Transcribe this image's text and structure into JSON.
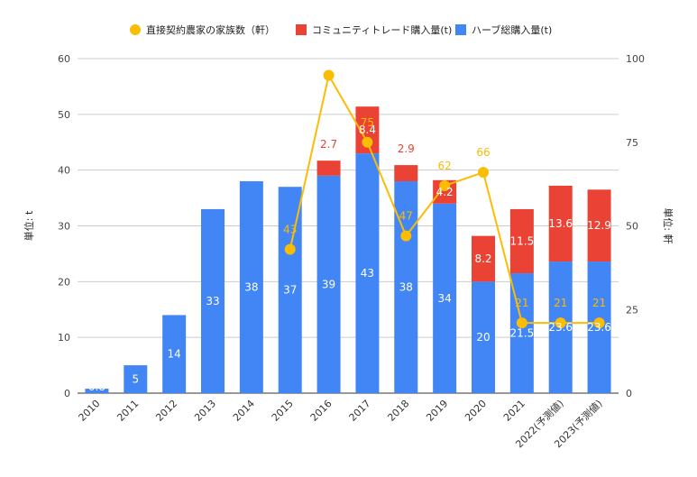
{
  "chart_data": {
    "type": "bar",
    "categories": [
      "2010",
      "2011",
      "2012",
      "2013",
      "2014",
      "2015",
      "2016",
      "2017",
      "2018",
      "2019",
      "2020",
      "2021",
      "2022(予測値)",
      "2023(予測値)"
    ],
    "series": [
      {
        "name": "ハーブ総購入量(t)",
        "type": "bar",
        "axis": "left",
        "color": "#4285f4",
        "values": [
          0.8,
          5,
          14,
          33,
          38,
          37,
          39,
          43,
          38,
          34,
          20,
          21.5,
          23.6,
          23.6
        ],
        "labels": [
          "0.8",
          "5",
          "14",
          "33",
          "38",
          "37",
          "39",
          "43",
          "38",
          "34",
          "20",
          "21.5",
          "23.6",
          "23.6"
        ]
      },
      {
        "name": "コミュニティトレード購入量(t)",
        "type": "bar",
        "stacked": true,
        "axis": "left",
        "color": "#ea4335",
        "values": [
          null,
          null,
          null,
          null,
          null,
          null,
          2.7,
          8.4,
          2.9,
          4.2,
          8.2,
          11.5,
          13.6,
          12.9
        ],
        "labels": [
          "",
          "",
          "",
          "",
          "",
          "",
          "2.7",
          "8.4",
          "2.9",
          "4.2",
          "8.2",
          "11.5",
          "13.6",
          "12.9"
        ]
      },
      {
        "name": "直接契約農家の家族数（軒）",
        "type": "line",
        "axis": "right",
        "color": "#fbbc04",
        "values": [
          null,
          null,
          null,
          null,
          null,
          43,
          95,
          75,
          47,
          62,
          66,
          21,
          21,
          21
        ],
        "labels": [
          "",
          "",
          "",
          "",
          "",
          "43",
          "",
          "75",
          "47",
          "62",
          "66",
          "21",
          "21",
          "21"
        ]
      }
    ],
    "ylabel_left": "単位: t",
    "ylabel_right": "単位: 軒",
    "ylim_left": [
      0,
      60
    ],
    "ylim_right": [
      0,
      100
    ],
    "yticks_left": [
      "0",
      "10",
      "20",
      "30",
      "40",
      "50",
      "60"
    ],
    "yticks_right": [
      "0",
      "25",
      "50",
      "75",
      "100"
    ],
    "grid": true,
    "legend_position": "top"
  }
}
